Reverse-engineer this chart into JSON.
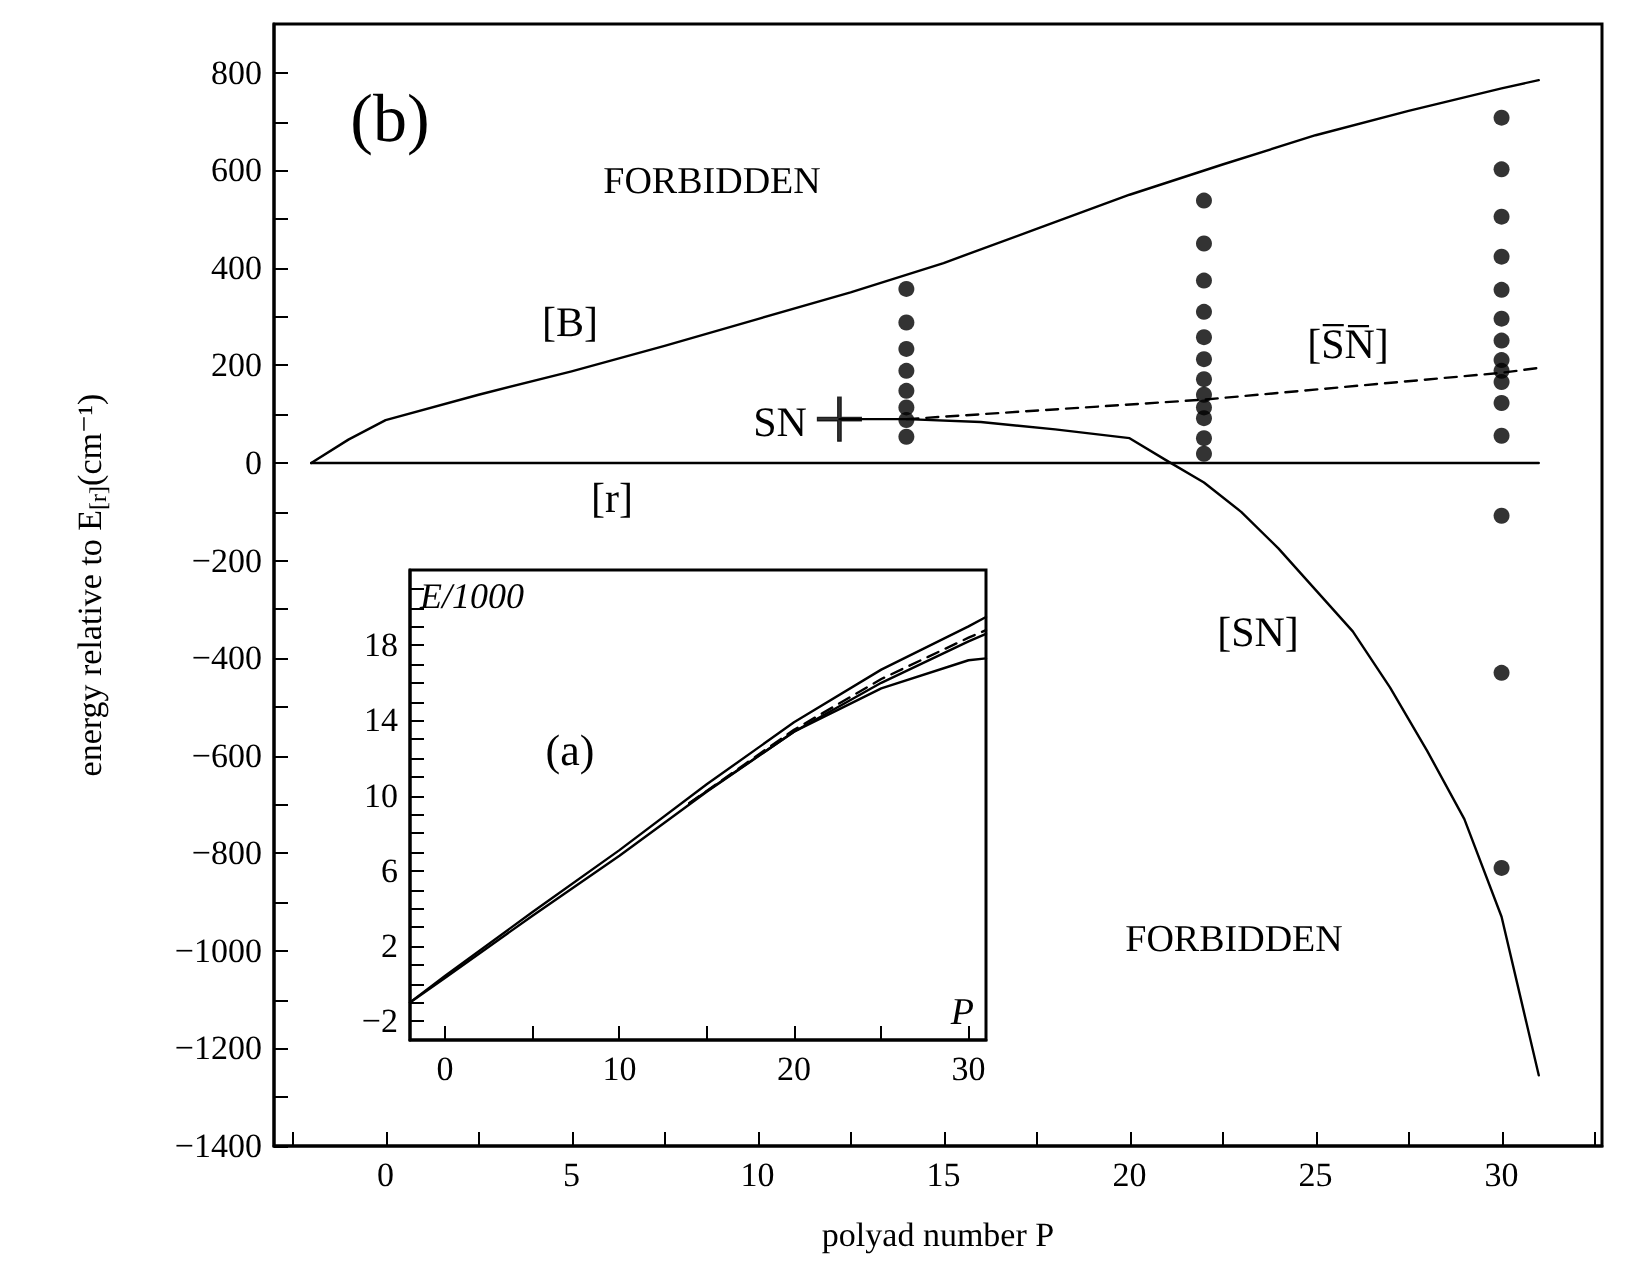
{
  "chart_data": [
    {
      "type": "line",
      "xlabel": "polyad number P",
      "ylabel": "energy relative to E$_{[r]}$(cm⁻¹)",
      "xlim": [
        -3,
        32.7
      ],
      "xticks": [
        {
          "value": -2.5,
          "label": null
        },
        0,
        {
          "value": 2.5,
          "label": null
        },
        5,
        {
          "value": 7.5,
          "label": null
        },
        10,
        {
          "value": 12.5,
          "label": null
        },
        15,
        {
          "value": 17.5,
          "label": null
        },
        20,
        {
          "value": 22.5,
          "label": null
        },
        25,
        {
          "value": 27.5,
          "label": null
        },
        30,
        {
          "value": 32.5,
          "label": null
        }
      ],
      "ylim": [
        -1400,
        900
      ],
      "yticks": [
        {
          "value": -1400,
          "label": "−1400"
        },
        {
          "value": -1300,
          "label": null
        },
        {
          "value": -1200,
          "label": "−1200"
        },
        {
          "value": -1100,
          "label": null
        },
        {
          "value": -1000,
          "label": "−1000"
        },
        {
          "value": -900,
          "label": null
        },
        {
          "value": -800,
          "label": "−800"
        },
        {
          "value": -700,
          "label": null
        },
        {
          "value": -600,
          "label": "−600"
        },
        {
          "value": -500,
          "label": null
        },
        {
          "value": -400,
          "label": "−400"
        },
        {
          "value": -300,
          "label": null
        },
        {
          "value": -200,
          "label": "−200"
        },
        {
          "value": -100,
          "label": null
        },
        0,
        {
          "value": 100,
          "label": null
        },
        200,
        {
          "value": 300,
          "label": null
        },
        400,
        {
          "value": 500,
          "label": null
        },
        600,
        {
          "value": 700,
          "label": null
        },
        800
      ],
      "series": [
        {
          "type": "line",
          "color": "#000000",
          "line_style": "solid",
          "x": [
            -2,
            -1,
            0,
            2.5,
            5,
            7.5,
            10,
            12.5,
            15,
            17.5,
            20,
            22.5,
            25,
            27.5,
            30,
            31
          ],
          "values": [
            0,
            48,
            88,
            140,
            188,
            240,
            295,
            350,
            410,
            480,
            550,
            612,
            672,
            722,
            768,
            785
          ]
        },
        {
          "type": "line",
          "color": "#000000",
          "line_style": "solid",
          "x": [
            -2,
            31
          ],
          "values": [
            0,
            0
          ]
        },
        {
          "type": "line",
          "color": "#000000",
          "line_style": "solid",
          "x": [
            12.2,
            14,
            16,
            18,
            20,
            21,
            22,
            23,
            24,
            25,
            26,
            27,
            28,
            29,
            30,
            31
          ],
          "values": [
            90,
            90,
            84,
            69,
            51,
            5,
            -40,
            -100,
            -175,
            -260,
            -345,
            -460,
            -590,
            -730,
            -930,
            -1255
          ]
        },
        {
          "type": "line",
          "color": "#000000",
          "line_style": "dashed",
          "x": [
            14,
            22,
            30,
            31
          ],
          "values": [
            90,
            130,
            185,
            195
          ]
        },
        {
          "type": "scatter",
          "color": "#000000",
          "marker": "cross",
          "x": [
            12.2
          ],
          "values": [
            90
          ]
        },
        {
          "type": "scatter",
          "color": "#000000",
          "marker": "circle",
          "x": [
            14,
            14,
            14,
            14,
            14,
            14,
            14,
            14,
            22,
            22,
            22,
            22,
            22,
            22,
            22,
            22,
            22,
            22,
            22,
            22,
            30,
            30,
            30,
            30,
            30,
            30,
            30,
            30,
            30,
            30,
            30,
            30,
            30,
            30,
            30
          ],
          "values": [
            357,
            288,
            234,
            189,
            148,
            114,
            88,
            54,
            538,
            450,
            374,
            310,
            258,
            213,
            172,
            140,
            114,
            92,
            51,
            19,
            708,
            602,
            505,
            423,
            355,
            296,
            251,
            211,
            189,
            166,
            123,
            56,
            -108,
            -430,
            -830
          ]
        }
      ],
      "annotations": [
        "(b)",
        "FORBIDDEN",
        "FORBIDDEN",
        "[B]",
        "[r]",
        "[S̅N̅]",
        "[SN]",
        "SN"
      ]
    },
    {
      "type": "line",
      "xlabel": "P",
      "ylabel": "E/1000",
      "xlim": [
        -2,
        31
      ],
      "xticks": [
        0,
        {
          "value": 5,
          "label": null
        },
        10,
        {
          "value": 15,
          "label": null
        },
        20,
        {
          "value": 25,
          "label": null
        },
        30
      ],
      "ylim": [
        -3,
        22
      ],
      "yticks": [
        {
          "value": -2,
          "label": "−2"
        },
        {
          "value": -1,
          "label": null
        },
        {
          "value": 0,
          "label": null
        },
        {
          "value": 1,
          "label": null
        },
        2,
        {
          "value": 3,
          "label": null
        },
        {
          "value": 4,
          "label": null
        },
        {
          "value": 5,
          "label": null
        },
        6,
        {
          "value": 7,
          "label": null
        },
        {
          "value": 8,
          "label": null
        },
        {
          "value": 9,
          "label": null
        },
        10,
        {
          "value": 11,
          "label": null
        },
        {
          "value": 12,
          "label": null
        },
        {
          "value": 13,
          "label": null
        },
        14,
        {
          "value": 15,
          "label": null
        },
        {
          "value": 16,
          "label": null
        },
        {
          "value": 17,
          "label": null
        },
        18,
        {
          "value": 19,
          "label": null
        },
        {
          "value": 20,
          "label": null
        },
        {
          "value": 21,
          "label": null
        }
      ],
      "series": [
        {
          "type": "line",
          "color": "#000000",
          "line_style": "solid",
          "x": [
            -2,
            0,
            5,
            10,
            15,
            20,
            25,
            30,
            31
          ],
          "values": [
            -1.0,
            0.4,
            3.8,
            7.1,
            10.6,
            13.9,
            16.7,
            19.0,
            19.5
          ]
        },
        {
          "type": "line",
          "color": "#000000",
          "line_style": "solid",
          "x": [
            -2,
            0,
            5,
            10,
            15,
            20,
            25,
            30,
            31
          ],
          "values": [
            -1.0,
            0.3,
            3.6,
            6.8,
            10.2,
            13.4,
            16.0,
            18.2,
            18.6
          ]
        },
        {
          "type": "line",
          "color": "#000000",
          "line_style": "solid",
          "x": [
            14,
            20,
            25,
            30,
            31
          ],
          "values": [
            9.6,
            13.4,
            15.7,
            17.2,
            17.3
          ]
        },
        {
          "type": "line",
          "color": "#000000",
          "line_style": "dashed",
          "x": [
            14,
            20,
            25,
            30,
            31
          ],
          "values": [
            9.6,
            13.5,
            16.2,
            18.4,
            18.8
          ]
        }
      ],
      "annotations": [
        "(a)"
      ]
    }
  ]
}
